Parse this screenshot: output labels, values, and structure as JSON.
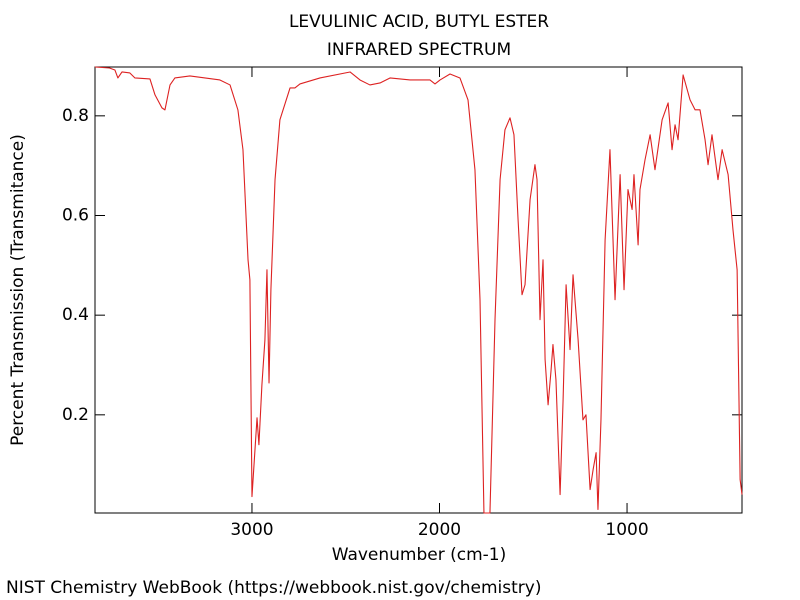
{
  "chart_data": {
    "type": "line",
    "title": "LEVULINIC ACID, BUTYL ESTER",
    "subtitle": "INFRARED SPECTRUM",
    "x_label": "Wavenumber (cm-1)",
    "y_label": "Percent Transmission (Transmitance)",
    "xlim": [
      3837,
      387
    ],
    "ylim": [
      0.003,
      0.898
    ],
    "xticks": [
      3000,
      2000,
      1000
    ],
    "yticks": [
      0.2,
      0.4,
      0.6,
      0.8
    ],
    "series": [
      {
        "color": "#dd2222",
        "x": [
          3837,
          3760,
          3731,
          3715,
          3693,
          3651,
          3624,
          3544,
          3517,
          3480,
          3464,
          3437,
          3411,
          3331,
          3171,
          3117,
          3075,
          3048,
          3021,
          3011,
          3000,
          2973,
          2963,
          2947,
          2931,
          2920,
          2909,
          2899,
          2877,
          2851,
          2797,
          2771,
          2744,
          2637,
          2477,
          2424,
          2371,
          2317,
          2264,
          2157,
          2051,
          2024,
          1997,
          1944,
          1891,
          1848,
          1811,
          1784,
          1763,
          1731,
          1704,
          1677,
          1651,
          1624,
          1603,
          1581,
          1560,
          1544,
          1517,
          1491,
          1480,
          1464,
          1448,
          1437,
          1421,
          1405,
          1395,
          1379,
          1357,
          1341,
          1325,
          1304,
          1288,
          1261,
          1235,
          1219,
          1197,
          1181,
          1165,
          1155,
          1139,
          1117,
          1091,
          1064,
          1037,
          1016,
          995,
          973,
          963,
          941,
          931,
          904,
          877,
          851,
          813,
          781,
          760,
          744,
          728,
          701,
          664,
          637,
          611,
          584,
          568,
          547,
          515,
          493,
          461,
          435,
          413,
          397,
          387
        ],
        "values": [
          0.898,
          0.896,
          0.892,
          0.876,
          0.888,
          0.886,
          0.876,
          0.874,
          0.842,
          0.816,
          0.812,
          0.862,
          0.876,
          0.88,
          0.872,
          0.862,
          0.812,
          0.732,
          0.511,
          0.471,
          0.036,
          0.194,
          0.14,
          0.26,
          0.35,
          0.491,
          0.264,
          0.451,
          0.672,
          0.792,
          0.856,
          0.856,
          0.864,
          0.876,
          0.888,
          0.872,
          0.862,
          0.866,
          0.876,
          0.872,
          0.872,
          0.864,
          0.872,
          0.884,
          0.876,
          0.832,
          0.692,
          0.431,
          0.003,
          0.003,
          0.391,
          0.672,
          0.772,
          0.796,
          0.762,
          0.591,
          0.441,
          0.461,
          0.632,
          0.702,
          0.672,
          0.391,
          0.511,
          0.311,
          0.22,
          0.29,
          0.341,
          0.27,
          0.04,
          0.23,
          0.461,
          0.331,
          0.481,
          0.351,
          0.19,
          0.2,
          0.05,
          0.09,
          0.124,
          0.01,
          0.19,
          0.551,
          0.732,
          0.431,
          0.682,
          0.451,
          0.652,
          0.612,
          0.682,
          0.541,
          0.652,
          0.712,
          0.762,
          0.692,
          0.792,
          0.826,
          0.732,
          0.782,
          0.752,
          0.882,
          0.832,
          0.812,
          0.812,
          0.752,
          0.702,
          0.762,
          0.672,
          0.732,
          0.682,
          0.571,
          0.491,
          0.07,
          0.04
        ]
      }
    ]
  },
  "footer": "NIST Chemistry WebBook (https://webbook.nist.gov/chemistry)"
}
